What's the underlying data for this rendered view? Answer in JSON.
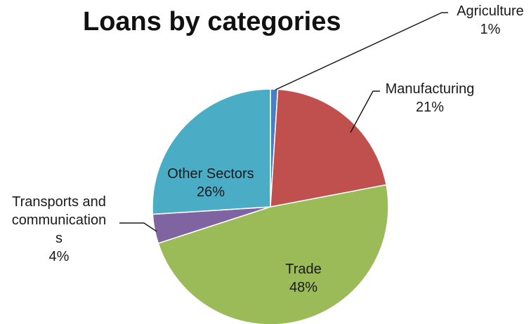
{
  "chart_data": {
    "type": "pie",
    "title": "Loans by categories",
    "slices": [
      {
        "label": "Agriculture",
        "percent_label": "1%",
        "value": 1,
        "color": "#4a7fc1"
      },
      {
        "label": "Manufacturing",
        "percent_label": "21%",
        "value": 21,
        "color": "#c0504d"
      },
      {
        "label": "Trade",
        "percent_label": "48%",
        "value": 48,
        "color": "#9bbb59"
      },
      {
        "label": "Transports and communication s",
        "label_lines": [
          "Transports and",
          "communication",
          "s"
        ],
        "percent_label": "4%",
        "value": 4,
        "color": "#8064a2"
      },
      {
        "label": "Other Sectors",
        "percent_label": "26%",
        "value": 26,
        "color": "#4bacc6"
      }
    ]
  }
}
